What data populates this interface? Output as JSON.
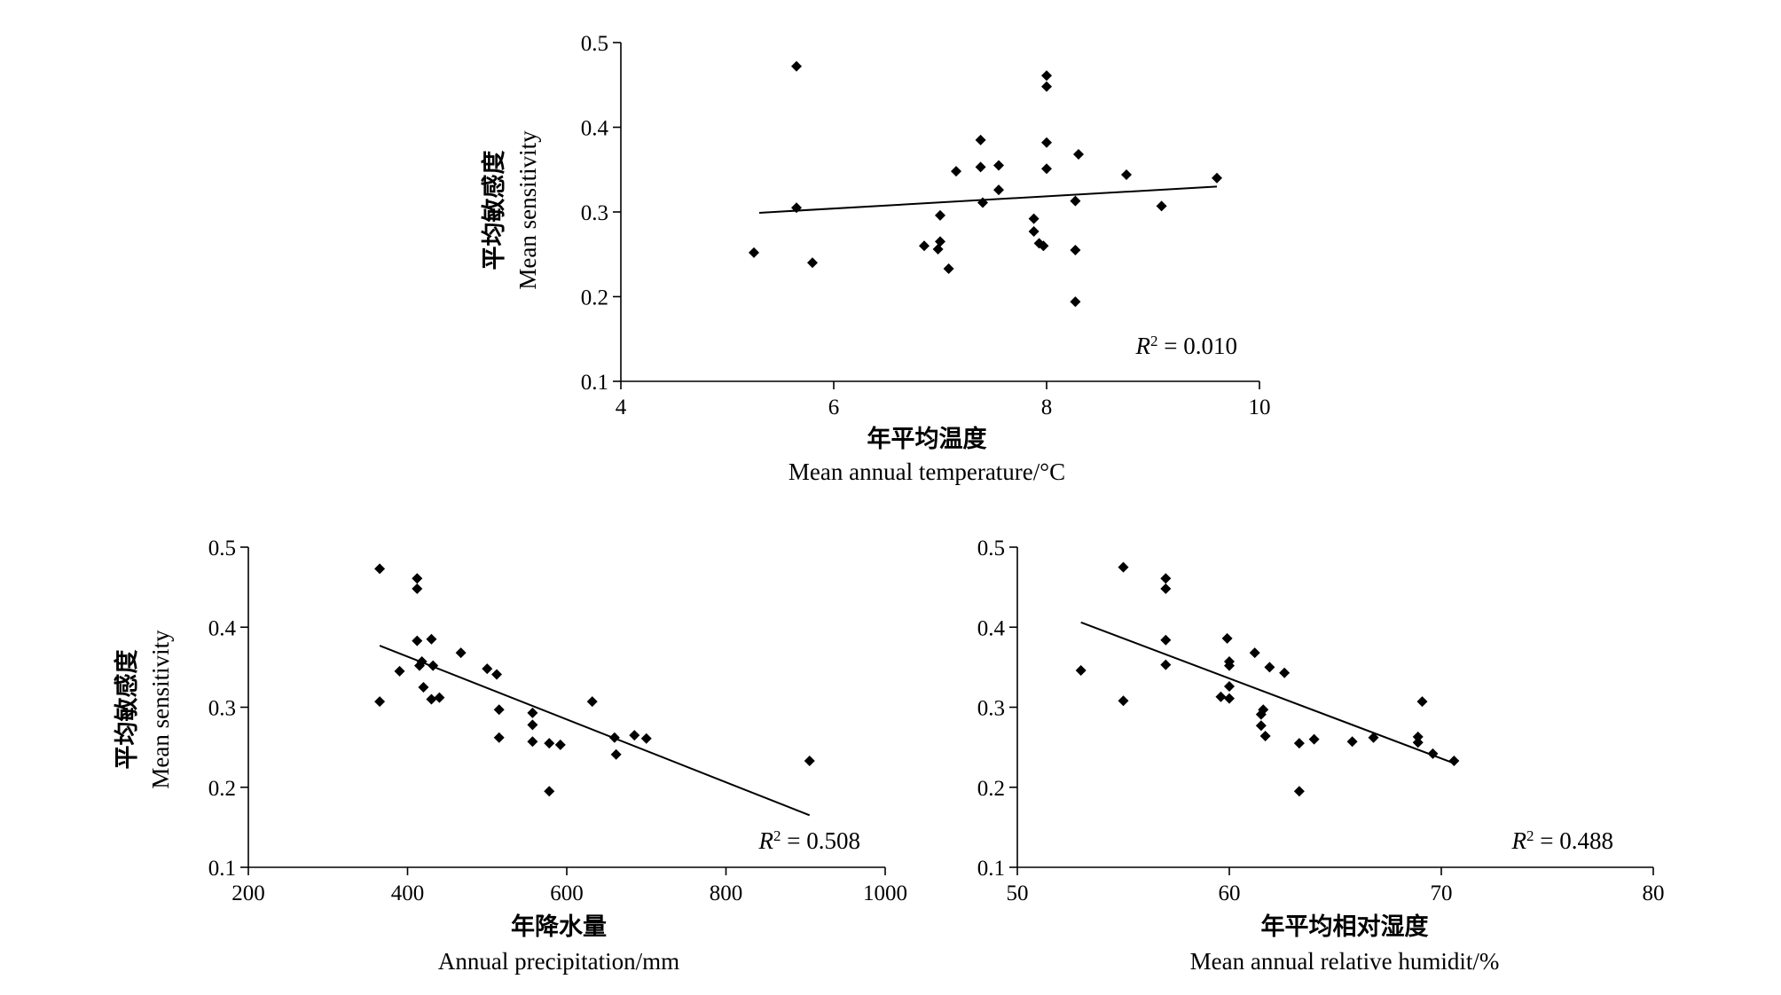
{
  "chart_data": [
    {
      "type": "scatter",
      "ylabel_cn": "平均敏感度",
      "ylabel": "Mean sensitivity",
      "xlabel_cn": "年平均温度",
      "xlabel": "Mean annual temperature/°C",
      "xlim": [
        4,
        10
      ],
      "ylim": [
        0.1,
        0.5
      ],
      "xticks": [
        "4",
        "6",
        "8",
        "10"
      ],
      "yticks": [
        "0.1",
        "0.2",
        "0.3",
        "0.4",
        "0.5"
      ],
      "r2_label": "R",
      "r2_sup": "2",
      "r2_value": " = 0.010",
      "trendline": [
        [
          5.3,
          0.299
        ],
        [
          9.6,
          0.33
        ]
      ],
      "points": [
        [
          5.25,
          0.252
        ],
        [
          5.65,
          0.472
        ],
        [
          5.65,
          0.305
        ],
        [
          5.8,
          0.24
        ],
        [
          6.85,
          0.26
        ],
        [
          7.0,
          0.296
        ],
        [
          7.0,
          0.265
        ],
        [
          6.98,
          0.256
        ],
        [
          7.08,
          0.233
        ],
        [
          7.15,
          0.348
        ],
        [
          7.38,
          0.385
        ],
        [
          7.38,
          0.353
        ],
        [
          7.4,
          0.311
        ],
        [
          7.55,
          0.355
        ],
        [
          7.55,
          0.326
        ],
        [
          7.88,
          0.292
        ],
        [
          7.88,
          0.277
        ],
        [
          7.93,
          0.263
        ],
        [
          7.97,
          0.26
        ],
        [
          8.0,
          0.461
        ],
        [
          8.0,
          0.448
        ],
        [
          8.0,
          0.382
        ],
        [
          8.0,
          0.351
        ],
        [
          8.27,
          0.313
        ],
        [
          8.27,
          0.255
        ],
        [
          8.27,
          0.194
        ],
        [
          8.3,
          0.368
        ],
        [
          8.75,
          0.344
        ],
        [
          9.08,
          0.307
        ],
        [
          9.6,
          0.34
        ]
      ]
    },
    {
      "type": "scatter",
      "ylabel_cn": "平均敏感度",
      "ylabel": "Mean sensitivity",
      "xlabel_cn": "年降水量",
      "xlabel": "Annual precipitation/mm",
      "xlim": [
        200,
        1000
      ],
      "ylim": [
        0.1,
        0.5
      ],
      "xticks": [
        "200",
        "400",
        "600",
        "800",
        "1000"
      ],
      "yticks": [
        "0.1",
        "0.2",
        "0.3",
        "0.4",
        "0.5"
      ],
      "r2_label": "R",
      "r2_sup": "2",
      "r2_value": " = 0.508",
      "trendline": [
        [
          365,
          0.377
        ],
        [
          905,
          0.165
        ]
      ],
      "points": [
        [
          365,
          0.473
        ],
        [
          365,
          0.307
        ],
        [
          390,
          0.345
        ],
        [
          412,
          0.461
        ],
        [
          412,
          0.448
        ],
        [
          412,
          0.383
        ],
        [
          415,
          0.352
        ],
        [
          418,
          0.357
        ],
        [
          420,
          0.325
        ],
        [
          430,
          0.385
        ],
        [
          432,
          0.352
        ],
        [
          430,
          0.31
        ],
        [
          440,
          0.312
        ],
        [
          467,
          0.368
        ],
        [
          500,
          0.348
        ],
        [
          512,
          0.341
        ],
        [
          515,
          0.297
        ],
        [
          515,
          0.262
        ],
        [
          557,
          0.293
        ],
        [
          557,
          0.278
        ],
        [
          557,
          0.257
        ],
        [
          578,
          0.195
        ],
        [
          578,
          0.255
        ],
        [
          592,
          0.253
        ],
        [
          632,
          0.307
        ],
        [
          660,
          0.262
        ],
        [
          662,
          0.241
        ],
        [
          685,
          0.265
        ],
        [
          700,
          0.261
        ],
        [
          905,
          0.233
        ]
      ]
    },
    {
      "type": "scatter",
      "ylabel_cn": "",
      "ylabel": "",
      "xlabel_cn": "年平均相对湿度",
      "xlabel": "Mean annual relative humidit/%",
      "xlim": [
        50,
        80
      ],
      "ylim": [
        0.1,
        0.5
      ],
      "xticks": [
        "50",
        "60",
        "70",
        "80"
      ],
      "yticks": [
        "0.1",
        "0.2",
        "0.3",
        "0.4",
        "0.5"
      ],
      "r2_label": "R",
      "r2_sup": "2",
      "r2_value": " = 0.488",
      "trendline": [
        [
          53,
          0.406
        ],
        [
          70.6,
          0.23
        ]
      ],
      "points": [
        [
          53,
          0.346
        ],
        [
          55,
          0.475
        ],
        [
          55,
          0.308
        ],
        [
          57,
          0.461
        ],
        [
          57,
          0.448
        ],
        [
          57,
          0.384
        ],
        [
          57,
          0.353
        ],
        [
          59.6,
          0.313
        ],
        [
          59.9,
          0.386
        ],
        [
          60,
          0.357
        ],
        [
          60,
          0.352
        ],
        [
          60,
          0.326
        ],
        [
          60,
          0.311
        ],
        [
          61.2,
          0.368
        ],
        [
          61.9,
          0.35
        ],
        [
          62.6,
          0.343
        ],
        [
          61.6,
          0.297
        ],
        [
          61.5,
          0.291
        ],
        [
          61.5,
          0.277
        ],
        [
          61.7,
          0.264
        ],
        [
          63.3,
          0.195
        ],
        [
          63.3,
          0.255
        ],
        [
          64,
          0.26
        ],
        [
          65.8,
          0.257
        ],
        [
          66.8,
          0.262
        ],
        [
          68.9,
          0.263
        ],
        [
          68.9,
          0.256
        ],
        [
          69.1,
          0.307
        ],
        [
          69.6,
          0.242
        ],
        [
          70.6,
          0.233
        ]
      ]
    }
  ]
}
